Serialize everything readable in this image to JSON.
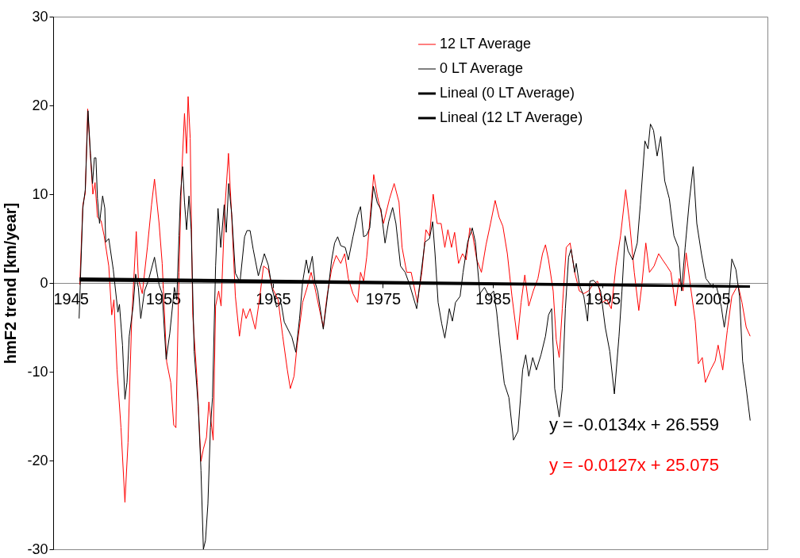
{
  "chart_data": {
    "type": "line",
    "ylabel": "hmF2 trend [km/year]",
    "xlim": [
      1945,
      2010
    ],
    "xticks": [
      1945,
      1955,
      1965,
      1975,
      1985,
      1995,
      2005
    ],
    "ylim": [
      -30,
      30
    ],
    "yticks": [
      -30,
      -20,
      -10,
      0,
      10,
      20,
      30
    ],
    "grid": false,
    "legend": "top right",
    "annotations": [
      "y = -0.0134x + 26.559",
      "y = -0.0127x + 25.075"
    ],
    "series": [
      {
        "name": "12 LT Average",
        "color": "#ff0000",
        "x": [
          1947.42,
          1947.7,
          1947.92,
          1948.14,
          1948.39,
          1948.61,
          1948.81,
          1949.03,
          1949.36,
          1949.64,
          1950.06,
          1950.33,
          1950.53,
          1950.81,
          1951.17,
          1951.53,
          1951.81,
          1952.14,
          1952.56,
          1952.75,
          1953.11,
          1953.58,
          1953.95,
          1954.22,
          1954.64,
          1954.92,
          1955.33,
          1955.7,
          1955.97,
          1956.17,
          1956.45,
          1956.67,
          1956.95,
          1957.14,
          1957.28,
          1957.47,
          1957.7,
          1958.11,
          1958.45,
          1958.67,
          1958.95,
          1959.17,
          1959.56,
          1959.78,
          1960.06,
          1960.28,
          1960.61,
          1960.95,
          1961.25,
          1961.58,
          1961.95,
          1962.28,
          1962.56,
          1962.92,
          1963.39,
          1963.81,
          1964.14,
          1964.58,
          1964.92,
          1965.47,
          1965.89,
          1966.31,
          1966.58,
          1966.92,
          1967.2,
          1967.7,
          1968.11,
          1968.47,
          1968.81,
          1969.22,
          1969.58,
          1969.92,
          1970.33,
          1970.75,
          1971.17,
          1971.53,
          1971.86,
          1972.28,
          1972.7,
          1972.97,
          1973.25,
          1973.53,
          1973.86,
          1974.17,
          1974.5,
          1975.06,
          1975.61,
          1976.03,
          1976.47,
          1976.75,
          1977.17,
          1977.58,
          1978.14,
          1978.55,
          1978.92,
          1979.25,
          1979.58,
          1979.94,
          1980.3,
          1980.64,
          1980.92,
          1981.25,
          1981.53,
          1981.89,
          1982.25,
          1982.58,
          1982.92,
          1983.19,
          1983.55,
          1983.97,
          1984.39,
          1984.8,
          1985.22,
          1985.58,
          1985.92,
          1986.33,
          1986.75,
          1987.25,
          1987.58,
          1987.92,
          1988.28,
          1988.69,
          1989.11,
          1989.53,
          1989.8,
          1990.08,
          1990.5,
          1990.78,
          1991.05,
          1991.33,
          1991.69,
          1992.04,
          1992.46,
          1992.88,
          1993.29,
          1993.71,
          1994.13,
          1994.54,
          1994.96,
          1995.38,
          1995.79,
          1996.21,
          1996.63,
          1997.1,
          1997.46,
          1997.88,
          1998.29,
          1998.57,
          1998.93,
          1999.26,
          1999.68,
          2000.1,
          2000.46,
          2000.85,
          2001.21,
          2001.63,
          2001.96,
          2002.32,
          2002.6,
          2003.01,
          2003.43,
          2003.71,
          2004.07,
          2004.35,
          2004.82,
          2005.24,
          2005.51,
          2005.93,
          2006.35,
          2006.76,
          2007.32,
          2007.68,
          2008.07,
          2008.43
        ],
        "values": [
          -0.2,
          8.8,
          10.1,
          19.6,
          14.3,
          10.0,
          11.3,
          7.4,
          7.0,
          5.3,
          1.9,
          -3.6,
          -1.9,
          -9.8,
          -16.3,
          -24.7,
          -18.0,
          -4.3,
          5.8,
          0.5,
          -1.2,
          4.1,
          8.8,
          11.7,
          6.7,
          2.2,
          -8.9,
          -11.2,
          -16.0,
          -16.3,
          1.2,
          11.5,
          19.1,
          14.6,
          21.0,
          16.3,
          -3.6,
          -11.2,
          -20.1,
          -18.7,
          -17.4,
          -13.4,
          -17.7,
          -2.6,
          -0.9,
          -2.6,
          8.1,
          14.6,
          7.4,
          -1.5,
          -6.0,
          -2.9,
          -4.0,
          -2.9,
          -5.2,
          -1.5,
          1.9,
          1.5,
          -0.5,
          -1.9,
          -6.0,
          -9.8,
          -11.9,
          -10.5,
          -7.0,
          -2.2,
          -0.5,
          1.2,
          -0.5,
          -2.9,
          -5.0,
          -1.5,
          1.5,
          3.1,
          2.2,
          3.3,
          0.5,
          -1.2,
          -2.2,
          1.2,
          0.2,
          2.9,
          7.7,
          12.2,
          9.8,
          6.7,
          9.5,
          11.2,
          9.1,
          4.0,
          1.2,
          1.2,
          -2.2,
          1.2,
          6.0,
          5.3,
          10.0,
          6.7,
          6.7,
          4.0,
          6.0,
          4.0,
          5.7,
          2.2,
          3.3,
          2.6,
          6.2,
          5.3,
          2.6,
          1.2,
          4.3,
          6.7,
          9.3,
          7.4,
          6.4,
          3.3,
          -1.5,
          -6.4,
          -2.2,
          0.9,
          -2.6,
          -0.9,
          0.5,
          3.3,
          4.3,
          2.6,
          -0.9,
          -6.4,
          -8.4,
          -2.9,
          4.0,
          4.5,
          1.2,
          -0.9,
          -1.2,
          -0.9,
          -0.2,
          0.2,
          -2.2,
          -1.9,
          -2.9,
          1.9,
          5.3,
          10.5,
          6.7,
          1.2,
          -3.1,
          -0.2,
          4.5,
          1.2,
          1.9,
          3.3,
          2.6,
          1.9,
          1.2,
          -2.6,
          0.5,
          -0.9,
          3.4,
          -0.5,
          -4.3,
          -9.1,
          -8.4,
          -11.2,
          -9.8,
          -8.8,
          -7.0,
          -9.8,
          -5.3,
          -1.5,
          -0.2,
          -2.2,
          -5.0,
          -6.0
        ]
      },
      {
        "name": "0 LT Average",
        "color": "#000000",
        "x": [
          1947.36,
          1947.7,
          1947.92,
          1948.17,
          1948.39,
          1948.58,
          1948.75,
          1948.89,
          1949.03,
          1949.22,
          1949.5,
          1949.7,
          1949.78,
          1950.06,
          1950.47,
          1950.89,
          1951.03,
          1951.31,
          1951.53,
          1951.72,
          1951.92,
          1952.28,
          1952.5,
          1952.75,
          1952.97,
          1953.31,
          1953.67,
          1954.22,
          1954.64,
          1954.92,
          1955.28,
          1955.61,
          1956.03,
          1956.25,
          1956.45,
          1956.58,
          1956.78,
          1956.95,
          1957.14,
          1957.36,
          1957.56,
          1957.83,
          1958.2,
          1958.45,
          1958.67,
          1958.86,
          1959.08,
          1959.31,
          1959.5,
          1959.78,
          1960.0,
          1960.25,
          1960.56,
          1960.75,
          1960.97,
          1961.25,
          1961.58,
          1962.0,
          1962.42,
          1962.64,
          1962.92,
          1963.2,
          1963.67,
          1964.22,
          1964.58,
          1964.92,
          1965.33,
          1965.75,
          1966.03,
          1966.72,
          1967.08,
          1967.42,
          1967.7,
          1968.03,
          1968.25,
          1968.58,
          1968.81,
          1969.08,
          1969.58,
          1969.92,
          1970.33,
          1970.61,
          1970.89,
          1971.17,
          1971.58,
          1971.86,
          1972.28,
          1972.7,
          1972.97,
          1973.25,
          1973.53,
          1973.81,
          1974.14,
          1974.5,
          1974.83,
          1975.2,
          1975.53,
          1975.89,
          1976.19,
          1976.61,
          1977.03,
          1977.44,
          1978.08,
          1978.42,
          1978.83,
          1979.25,
          1979.53,
          1979.75,
          1980.03,
          1980.36,
          1980.64,
          1981.05,
          1981.33,
          1981.61,
          1982.03,
          1982.3,
          1982.72,
          1983.14,
          1983.42,
          1983.83,
          1984.25,
          1984.67,
          1985.08,
          1985.36,
          1985.69,
          1986.05,
          1986.47,
          1986.89,
          1987.3,
          1987.72,
          1988.0,
          1988.28,
          1988.64,
          1988.97,
          1989.39,
          1989.8,
          1990.08,
          1990.36,
          1990.64,
          1991.05,
          1991.33,
          1991.61,
          1991.9,
          1992.13,
          1992.46,
          1992.6,
          1992.88,
          1993.29,
          1993.63,
          1993.85,
          1994.18,
          1994.54,
          1994.82,
          1995.24,
          1995.65,
          1996.07,
          1996.49,
          1996.76,
          1997.04,
          1997.32,
          1997.74,
          1998.15,
          1998.43,
          1998.85,
          1999.13,
          1999.35,
          1999.63,
          1999.96,
          2000.29,
          2000.65,
          2001.07,
          2001.49,
          2001.9,
          2002.18,
          2002.51,
          2002.88,
          2003.24,
          2003.57,
          2003.99,
          2004.4,
          2004.82,
          2005.38,
          2005.79,
          2006.07,
          2006.49,
          2006.76,
          2007.13,
          2007.46,
          2007.74,
          2008.07,
          2008.43
        ],
        "values": [
          -4.0,
          8.4,
          10.5,
          19.4,
          14.6,
          11.2,
          14.1,
          14.1,
          9.5,
          6.7,
          9.8,
          8.4,
          4.6,
          5.0,
          1.5,
          -3.3,
          -2.4,
          -7.0,
          -13.1,
          -11.2,
          -6.0,
          -2.6,
          1.0,
          -0.5,
          -4.0,
          -0.9,
          0.3,
          2.9,
          -0.2,
          -1.2,
          -8.6,
          -5.7,
          -0.5,
          -1.9,
          5.3,
          9.8,
          13.1,
          9.1,
          6.0,
          9.8,
          6.0,
          -7.7,
          -13.9,
          -21.1,
          -30.0,
          -29.0,
          -24.9,
          -16.3,
          -12.9,
          1.9,
          8.4,
          4.0,
          8.8,
          5.7,
          11.2,
          7.7,
          1.1,
          0.1,
          5.2,
          5.9,
          5.9,
          3.8,
          0.8,
          3.3,
          2.0,
          -0.6,
          -2.7,
          -2.3,
          -4.4,
          -6.1,
          -7.8,
          -4.0,
          0.1,
          2.6,
          1.1,
          3.0,
          0.2,
          -1.0,
          -5.2,
          -1.9,
          2.5,
          4.5,
          5.2,
          4.2,
          4.0,
          2.6,
          5.2,
          7.6,
          8.6,
          5.2,
          5.4,
          6.2,
          10.9,
          9.0,
          8.3,
          4.5,
          6.9,
          8.5,
          6.7,
          1.9,
          1.2,
          -0.2,
          -2.9,
          0.5,
          4.6,
          5.0,
          6.9,
          3.3,
          -2.2,
          -4.6,
          -6.2,
          -2.9,
          -4.3,
          -2.2,
          -1.5,
          1.2,
          4.6,
          6.2,
          4.6,
          -1.2,
          -0.5,
          -1.5,
          -0.9,
          -3.3,
          -7.4,
          -11.3,
          -12.9,
          -17.7,
          -16.7,
          -9.8,
          -8.1,
          -10.5,
          -8.4,
          -9.8,
          -8.1,
          -6.0,
          -3.6,
          -2.9,
          -11.9,
          -15.1,
          -11.9,
          -2.9,
          2.9,
          3.8,
          1.2,
          2.2,
          -0.2,
          -1.5,
          -4.3,
          0.2,
          0.3,
          -0.2,
          -0.9,
          -5.0,
          -7.7,
          -12.5,
          -6.0,
          -0.9,
          5.3,
          3.6,
          2.6,
          4.5,
          8.8,
          16.0,
          15.1,
          17.9,
          17.2,
          14.3,
          16.5,
          11.5,
          9.5,
          5.3,
          4.0,
          -0.9,
          4.0,
          9.1,
          13.1,
          6.7,
          3.3,
          0.5,
          -0.2,
          -0.5,
          -2.6,
          -5.0,
          -1.5,
          2.7,
          1.5,
          -1.5,
          -8.8,
          -11.9,
          -15.5
        ]
      },
      {
        "name": "Lineal (0 LT Average)",
        "type": "line",
        "color": "#000000",
        "x": [
          1947.4,
          2008.4
        ],
        "values": [
          0.5,
          -0.4
        ]
      },
      {
        "name": "Lineal (12 LT Average)",
        "type": "line",
        "color": "#000000",
        "x": [
          1947.4,
          2008.4
        ],
        "values": [
          0.3,
          -0.4
        ]
      }
    ]
  }
}
